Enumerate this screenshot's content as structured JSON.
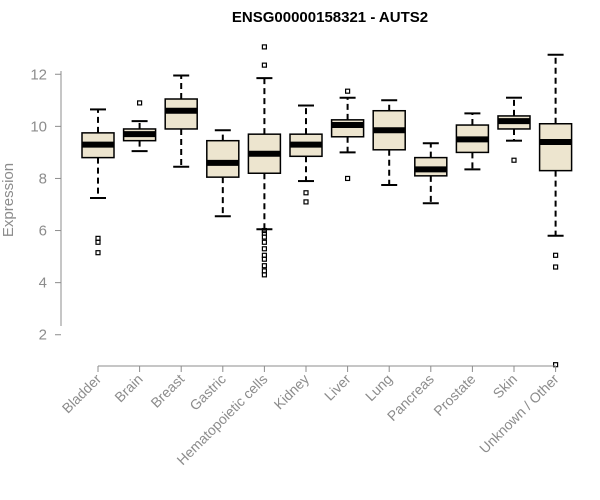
{
  "chart_data": {
    "type": "boxplot",
    "title": "ENSG00000158321 - AUTS2",
    "ylabel": "Expression",
    "xlabel": "",
    "ylim": [
      0.8,
      13.2
    ],
    "yticks": [
      "2",
      "4",
      "6",
      "8",
      "10",
      "12"
    ],
    "categories": [
      "Bladder",
      "Brain",
      "Breast",
      "Gastric",
      "Hematopoietic cells",
      "Kidney",
      "Liver",
      "Lung",
      "Pancreas",
      "Prostate",
      "Skin",
      "Unknown / Other"
    ],
    "boxes": [
      {
        "whisker_low": 7.25,
        "q1": 8.8,
        "median": 9.3,
        "q3": 9.75,
        "whisker_high": 10.65,
        "outliers": [
          5.15,
          5.55,
          5.7
        ]
      },
      {
        "whisker_low": 9.05,
        "q1": 9.45,
        "median": 9.7,
        "q3": 9.9,
        "whisker_high": 10.2,
        "outliers": [
          10.9
        ]
      },
      {
        "whisker_low": 8.45,
        "q1": 9.9,
        "median": 10.6,
        "q3": 11.05,
        "whisker_high": 11.95,
        "outliers": []
      },
      {
        "whisker_low": 6.55,
        "q1": 8.05,
        "median": 8.6,
        "q3": 9.45,
        "whisker_high": 9.85,
        "outliers": []
      },
      {
        "whisker_low": 6.05,
        "q1": 8.2,
        "median": 8.95,
        "q3": 9.7,
        "whisker_high": 11.85,
        "outliers": [
          4.3,
          4.45,
          4.65,
          4.9,
          5.05,
          5.3,
          5.55,
          5.75,
          5.9,
          6.0,
          12.35,
          13.05
        ]
      },
      {
        "whisker_low": 7.9,
        "q1": 8.85,
        "median": 9.3,
        "q3": 9.7,
        "whisker_high": 10.8,
        "outliers": [
          7.1,
          7.45
        ]
      },
      {
        "whisker_low": 9.0,
        "q1": 9.6,
        "median": 10.05,
        "q3": 10.25,
        "whisker_high": 11.1,
        "outliers": [
          8.0,
          11.35
        ]
      },
      {
        "whisker_low": 7.75,
        "q1": 9.1,
        "median": 9.85,
        "q3": 10.6,
        "whisker_high": 11.0,
        "outliers": []
      },
      {
        "whisker_low": 7.05,
        "q1": 8.1,
        "median": 8.35,
        "q3": 8.8,
        "whisker_high": 9.35,
        "outliers": []
      },
      {
        "whisker_low": 8.35,
        "q1": 9.0,
        "median": 9.5,
        "q3": 10.05,
        "whisker_high": 10.5,
        "outliers": []
      },
      {
        "whisker_low": 9.45,
        "q1": 9.9,
        "median": 10.2,
        "q3": 10.4,
        "whisker_high": 11.1,
        "outliers": [
          8.7
        ]
      },
      {
        "whisker_low": 5.8,
        "q1": 8.3,
        "median": 9.4,
        "q3": 10.1,
        "whisker_high": 12.75,
        "outliers": [
          0.85,
          4.6,
          5.05
        ]
      }
    ],
    "colors": {
      "box_fill": "#ede5cf",
      "box_stroke": "#000000",
      "median": "#000000",
      "axis": "#8c8c8c",
      "title": "#000000"
    },
    "grid": false,
    "legend": "none"
  }
}
